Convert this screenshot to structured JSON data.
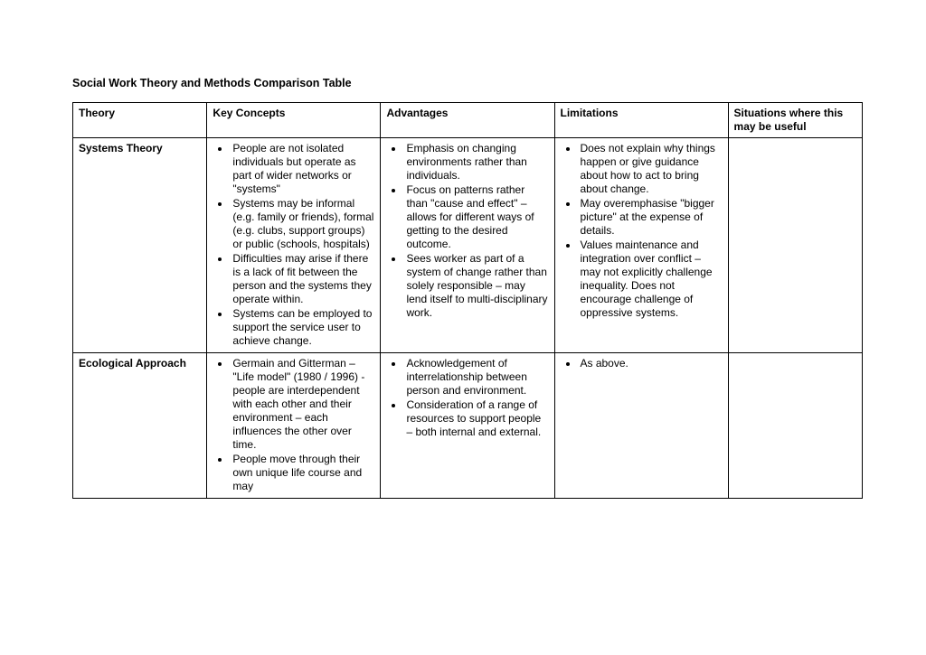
{
  "title": "Social Work Theory and Methods Comparison Table",
  "headers": {
    "col1": "Theory",
    "col2": "Key Concepts",
    "col3": "Advantages",
    "col4": "Limitations",
    "col5": "Situations where this may be useful"
  },
  "rows": [
    {
      "theory": "Systems Theory",
      "key_concepts": [
        "People are not isolated individuals but operate as part of wider networks or \"systems\"",
        "Systems may be informal (e.g. family or friends), formal (e.g. clubs, support groups) or public (schools, hospitals)",
        "Difficulties may arise if there is a lack of fit between the person and the systems they operate within.",
        "Systems can be employed to support the service user to achieve change."
      ],
      "advantages": [
        "Emphasis on changing environments rather than individuals.",
        "Focus on patterns rather than \"cause and effect\" – allows for different ways of getting to the desired outcome.",
        "Sees worker as part of a system of change rather than solely responsible – may lend itself to multi-disciplinary work."
      ],
      "limitations": [
        "Does not explain why things happen or give guidance about how to act to bring about change.",
        "May overemphasise \"bigger picture\" at the expense of details.",
        "Values maintenance and integration over conflict – may not explicitly challenge inequality. Does not encourage challenge of oppressive systems."
      ],
      "situations": []
    },
    {
      "theory": "Ecological Approach",
      "key_concepts": [
        "Germain and Gitterman – \"Life model\" (1980 / 1996)  - people are interdependent with each other and their environment – each influences the other over time.",
        "People move through their own unique life course and may"
      ],
      "advantages": [
        "Acknowledgement of interrelationship between person and environment.",
        "Consideration of a range of resources to support people – both internal and external."
      ],
      "limitations": [
        "As above."
      ],
      "situations": []
    }
  ]
}
